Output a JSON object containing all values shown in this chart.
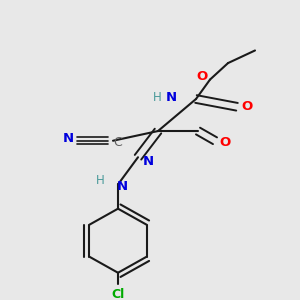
{
  "background_color": "#e8e8e8",
  "bond_color": "#1a1a1a",
  "atom_colors": {
    "N": "#0000dd",
    "O": "#ff0000",
    "Cl": "#00aa00",
    "C_label": "#606060",
    "H": "#4a9a9a"
  },
  "figsize": [
    3.0,
    3.0
  ],
  "dpi": 100
}
